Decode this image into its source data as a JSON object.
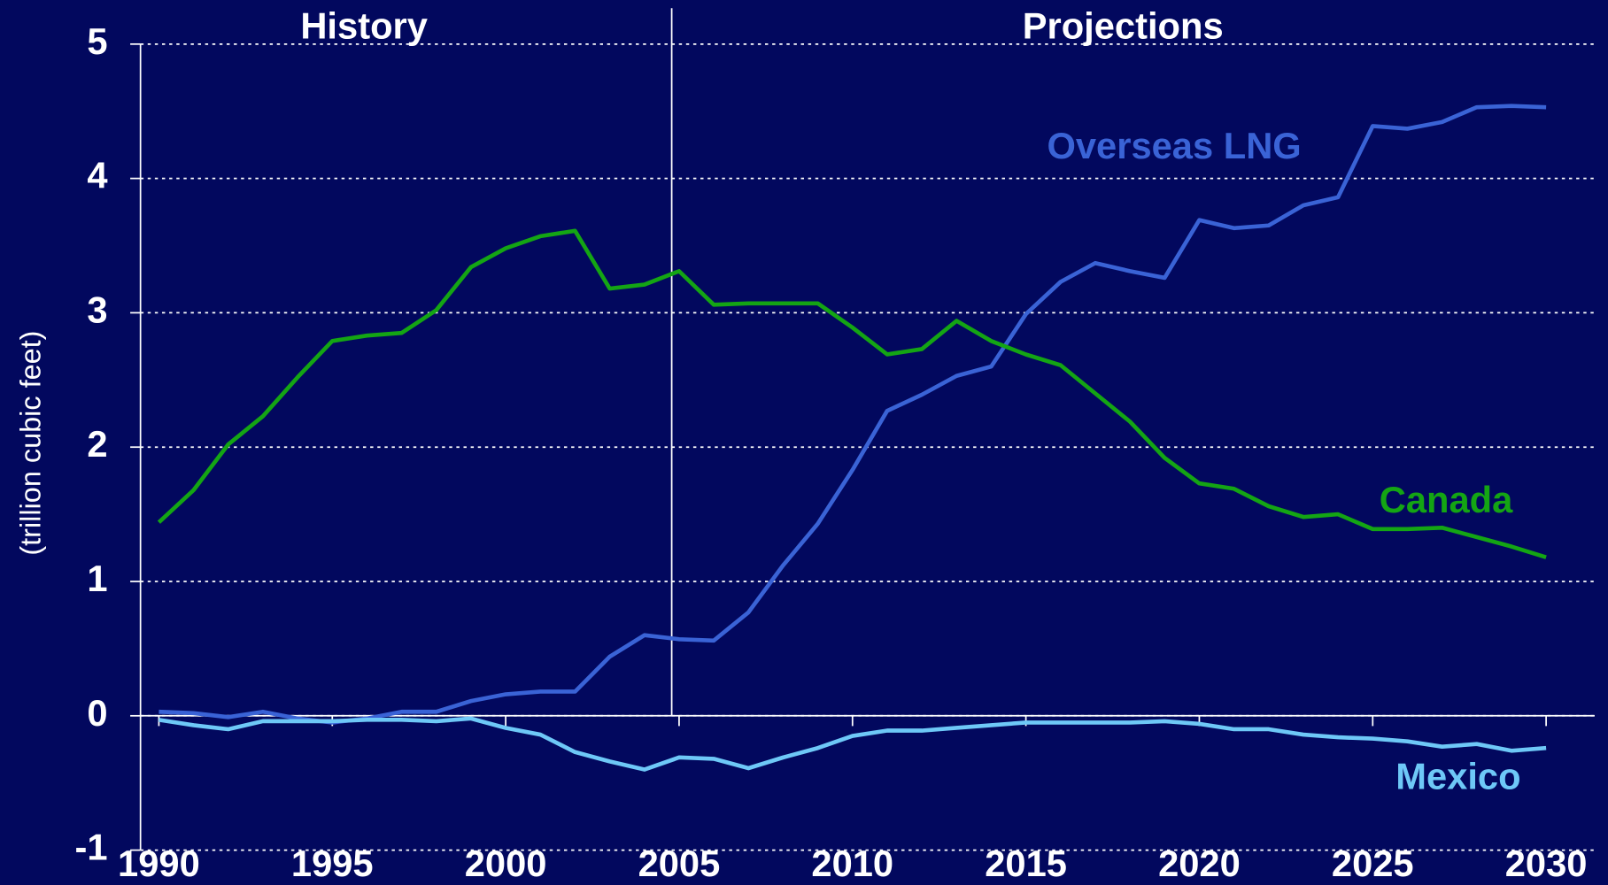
{
  "chart_data": {
    "type": "line",
    "y_label": "(trillion cubic feet)",
    "annotations": [
      "History",
      "Projections"
    ],
    "x": [
      1990,
      1991,
      1992,
      1993,
      1994,
      1995,
      1996,
      1997,
      1998,
      1999,
      2000,
      2001,
      2002,
      2003,
      2004,
      2005,
      2006,
      2007,
      2008,
      2009,
      2010,
      2011,
      2012,
      2013,
      2014,
      2015,
      2016,
      2017,
      2018,
      2019,
      2020,
      2021,
      2022,
      2023,
      2024,
      2025,
      2026,
      2027,
      2028,
      2029,
      2030
    ],
    "series": [
      {
        "name": "Overseas LNG",
        "color": "#3a63d6",
        "values": [
          0.03,
          0.02,
          -0.01,
          0.03,
          -0.02,
          -0.05,
          -0.02,
          0.03,
          0.03,
          0.11,
          0.16,
          0.18,
          0.18,
          0.44,
          0.6,
          0.57,
          0.56,
          0.77,
          1.12,
          1.43,
          1.83,
          2.27,
          2.39,
          2.53,
          2.6,
          2.99,
          3.23,
          3.37,
          3.31,
          3.26,
          3.69,
          3.63,
          3.65,
          3.8,
          3.86,
          4.39,
          4.37,
          4.42,
          4.53,
          4.54,
          4.53
        ]
      },
      {
        "name": "Canada",
        "color": "#14a514",
        "values": [
          1.44,
          1.68,
          2.02,
          2.23,
          2.52,
          2.79,
          2.83,
          2.85,
          3.02,
          3.34,
          3.48,
          3.57,
          3.61,
          3.18,
          3.21,
          3.31,
          3.06,
          3.07,
          3.07,
          3.07,
          2.89,
          2.69,
          2.73,
          2.94,
          2.79,
          2.69,
          2.61,
          2.4,
          2.19,
          1.92,
          1.73,
          1.69,
          1.56,
          1.48,
          1.5,
          1.39,
          1.39,
          1.4,
          1.33,
          1.26,
          1.18
        ]
      },
      {
        "name": "Mexico",
        "color": "#6ec8f7",
        "values": [
          -0.03,
          -0.07,
          -0.1,
          -0.04,
          -0.04,
          -0.04,
          -0.03,
          -0.03,
          -0.04,
          -0.02,
          -0.09,
          -0.14,
          -0.27,
          -0.34,
          -0.4,
          -0.31,
          -0.32,
          -0.39,
          -0.31,
          -0.24,
          -0.15,
          -0.11,
          -0.11,
          -0.09,
          -0.07,
          -0.05,
          -0.05,
          -0.05,
          -0.05,
          -0.04,
          -0.06,
          -0.1,
          -0.1,
          -0.14,
          -0.16,
          -0.17,
          -0.19,
          -0.23,
          -0.21,
          -0.26,
          -0.24
        ]
      }
    ],
    "xlim": [
      1989.47,
      2031.4
    ],
    "xticks": [
      1990,
      1995,
      2000,
      2005,
      2010,
      2015,
      2020,
      2025,
      2030
    ],
    "ylim": [
      -1,
      5
    ],
    "yticks": [
      -1,
      0,
      1,
      2,
      3,
      4,
      5
    ],
    "grid": true
  }
}
